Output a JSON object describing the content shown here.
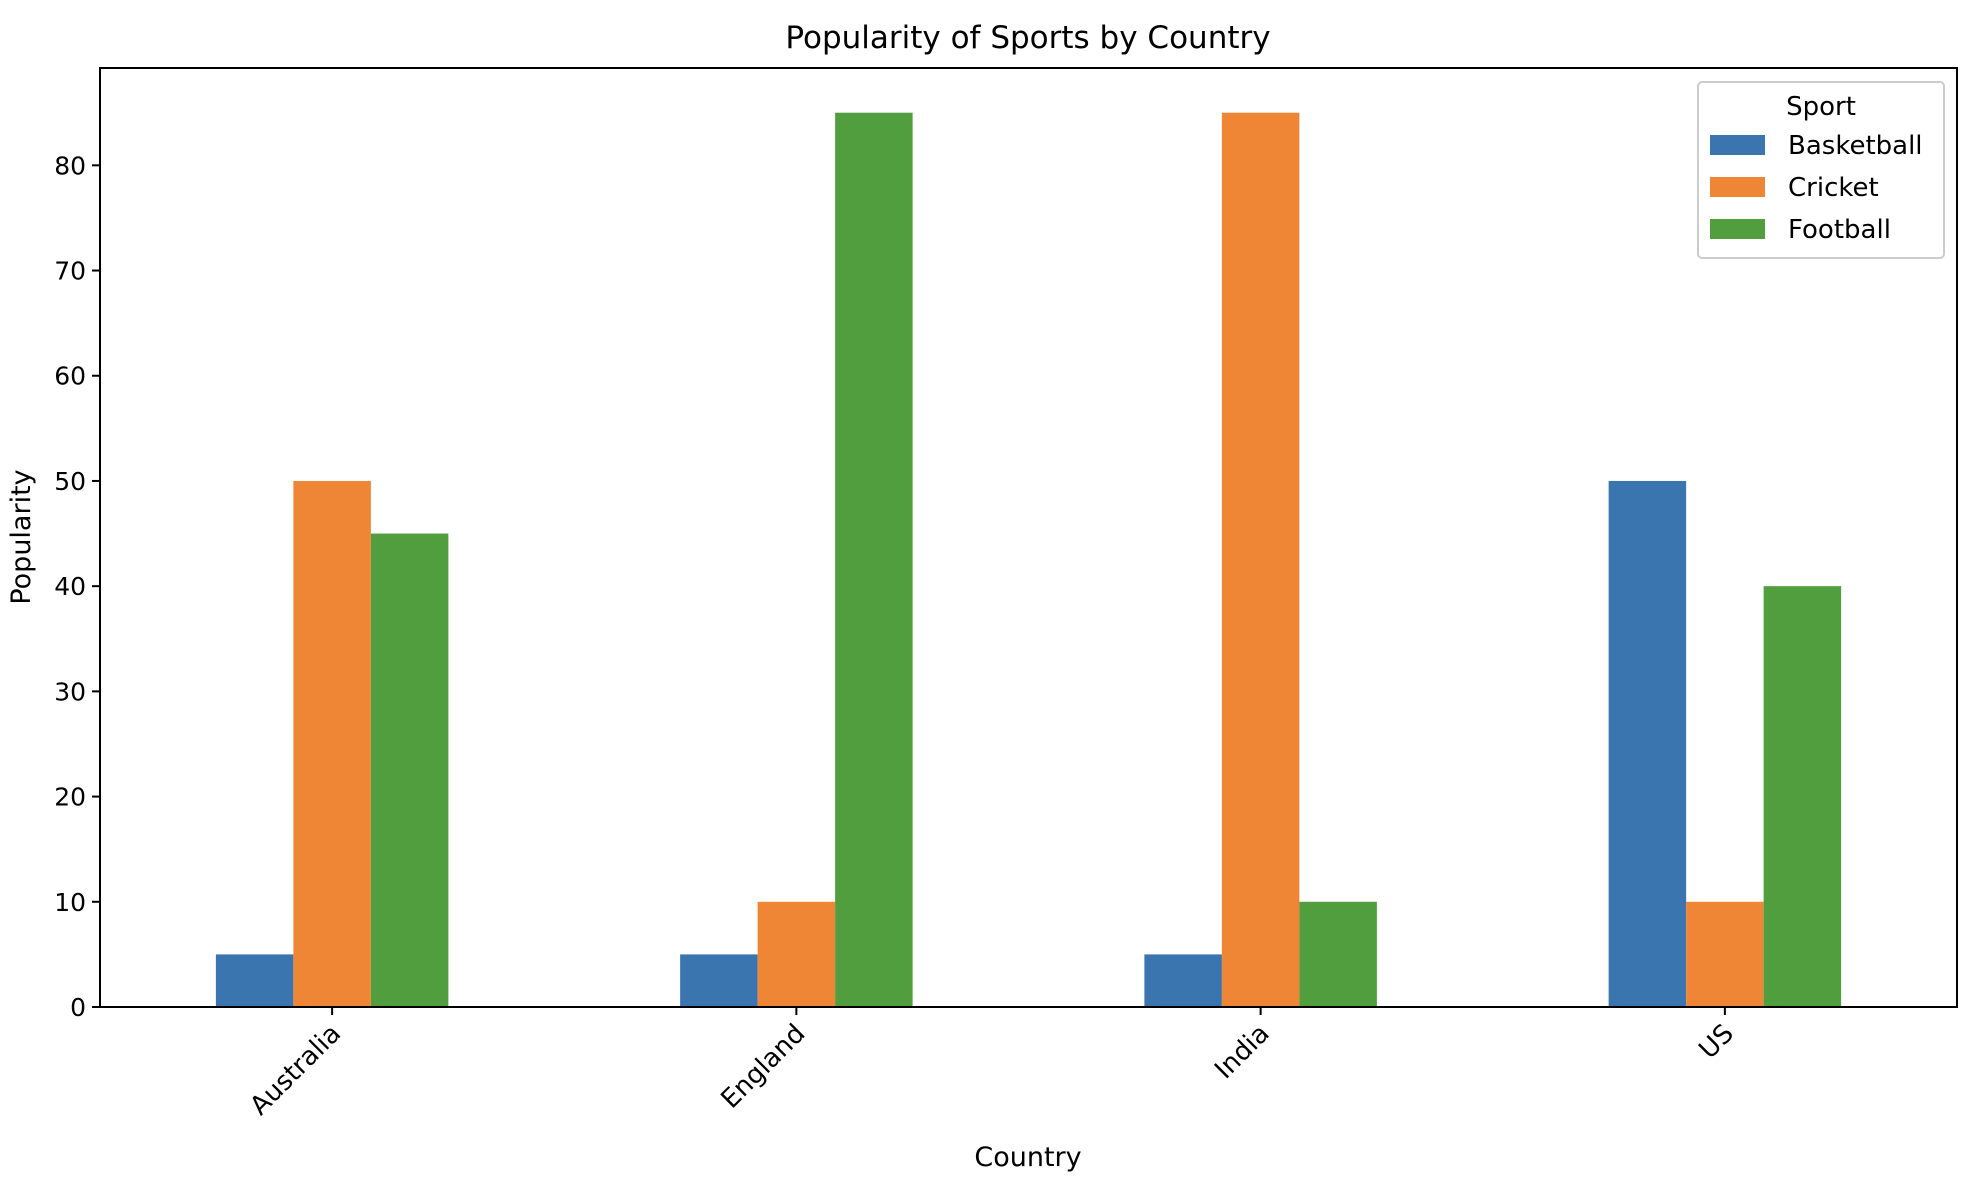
{
  "chart_data": {
    "type": "bar",
    "title": "Popularity of Sports by Country",
    "xlabel": "Country",
    "ylabel": "Popularity",
    "categories": [
      "Australia",
      "England",
      "India",
      "US"
    ],
    "series": [
      {
        "name": "Basketball",
        "color": "#3b75af",
        "values": [
          5,
          5,
          5,
          50
        ]
      },
      {
        "name": "Cricket",
        "color": "#ef8636",
        "values": [
          50,
          10,
          85,
          10
        ]
      },
      {
        "name": "Football",
        "color": "#519e3e",
        "values": [
          45,
          85,
          10,
          40
        ]
      }
    ],
    "ylim": [
      0,
      89.25
    ],
    "yticks": [
      0,
      10,
      20,
      30,
      40,
      50,
      60,
      70,
      80
    ],
    "legend": {
      "title": "Sport",
      "placement": "top-right"
    },
    "grid": false
  }
}
